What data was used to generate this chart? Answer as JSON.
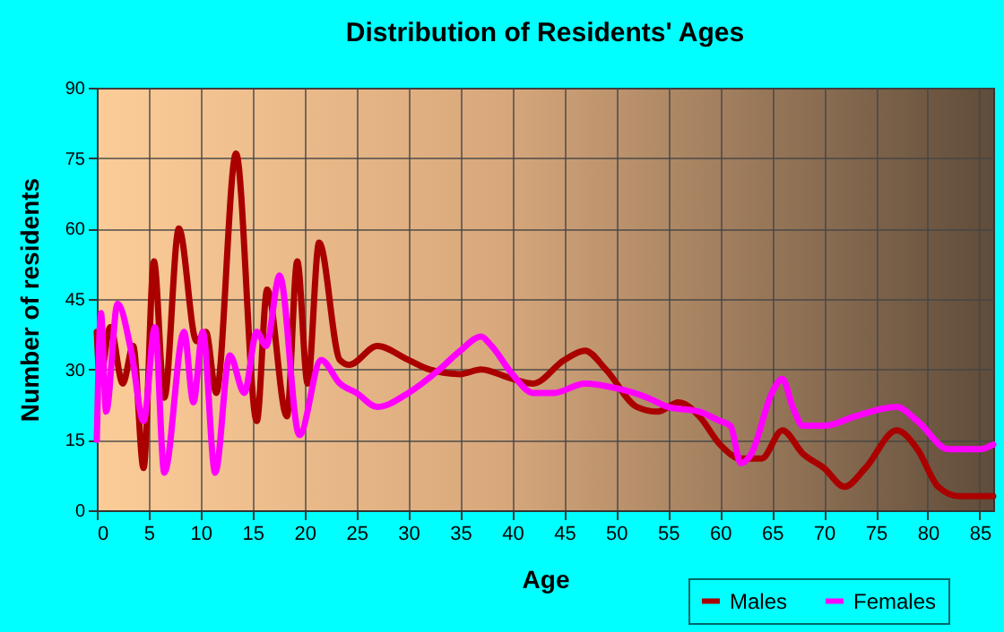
{
  "chart_data": {
    "type": "line",
    "title": "Distribution of Residents' Ages",
    "xlabel": "Age",
    "ylabel": "Number of residents",
    "xlim": [
      0,
      86.3
    ],
    "xticks": [
      0,
      5,
      10,
      15,
      20,
      25,
      30,
      35,
      40,
      45,
      50,
      55,
      60,
      65,
      70,
      75,
      80,
      85
    ],
    "ylim": [
      0,
      90
    ],
    "yticks": [
      0,
      15,
      30,
      45,
      60,
      75,
      90
    ],
    "grid": true,
    "legend": "bottom right",
    "series": [
      {
        "name": "Males",
        "color": "#aa0000",
        "x": [
          0,
          0.3,
          1.3,
          2.5,
          3.5,
          4.5,
          5.5,
          6.5,
          7.9,
          9.6,
          10.5,
          11.5,
          13.4,
          15.4,
          16.4,
          18.3,
          19.3,
          20.3,
          21.4,
          23.4,
          24.3,
          27,
          30,
          32,
          35,
          37,
          40,
          42,
          45,
          47,
          49,
          52,
          54,
          56,
          58,
          60,
          62,
          64,
          66,
          68,
          70,
          72,
          74,
          77,
          79,
          81,
          83,
          86.3
        ],
        "values": [
          38,
          28,
          39,
          27,
          35,
          9,
          53,
          24,
          60,
          36,
          38,
          25,
          76,
          19,
          47,
          20,
          53,
          27,
          57,
          32,
          31,
          35,
          32,
          30,
          29,
          30,
          28,
          27,
          32,
          34,
          30,
          22,
          21,
          23,
          20,
          14,
          11,
          11,
          17,
          12,
          9,
          5,
          9,
          17,
          13,
          5,
          3,
          3
        ]
      },
      {
        "name": "Females",
        "color": "#ff00ff",
        "x": [
          0,
          0.4,
          0.9,
          2,
          3.3,
          4.5,
          5.6,
          6.5,
          8.4,
          9.3,
          10.2,
          11.4,
          12.8,
          14.2,
          15.4,
          16.3,
          17.6,
          19.5,
          21.6,
          23.4,
          25,
          27,
          30,
          33,
          35,
          37,
          38,
          40,
          42,
          44,
          47,
          50,
          53,
          55,
          58,
          60,
          61,
          62,
          63,
          65,
          66,
          67,
          68,
          70,
          73,
          77,
          79,
          82,
          85,
          86.3
        ],
        "values": [
          15,
          42,
          21,
          44,
          34,
          19,
          39,
          8,
          38,
          23,
          38,
          8,
          33,
          25,
          38,
          35,
          50,
          16,
          32,
          27,
          25,
          22,
          25,
          30,
          34,
          37,
          35,
          29,
          25,
          25,
          27,
          26,
          24,
          22,
          21,
          19,
          18,
          10,
          12,
          25,
          28,
          22,
          18,
          18,
          20,
          22,
          19,
          13,
          13,
          14
        ]
      }
    ]
  }
}
